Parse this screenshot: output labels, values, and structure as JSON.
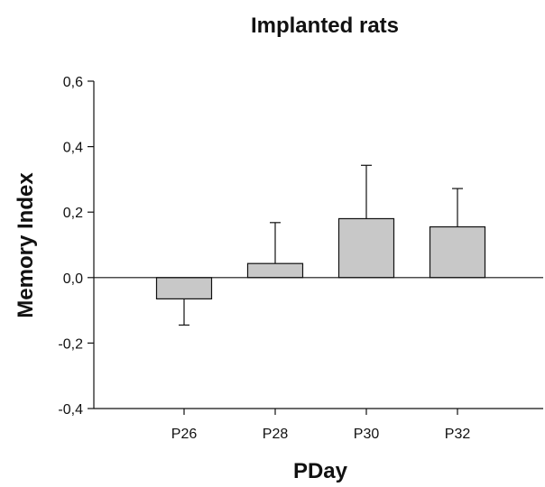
{
  "chart_data": {
    "type": "bar",
    "title": "Implanted rats",
    "xlabel": "PDay",
    "ylabel": "Memory Index",
    "categories": [
      "P26",
      "P28",
      "P30",
      "P32"
    ],
    "values": [
      -0.065,
      0.043,
      0.18,
      0.155
    ],
    "error_upper": [
      0.08,
      0.125,
      0.163,
      0.117
    ],
    "ylim": [
      -0.4,
      0.6
    ],
    "yticks": [
      -0.4,
      -0.2,
      0.0,
      0.2,
      0.4,
      0.6
    ],
    "ytick_labels": [
      "-0,4",
      "-0,2",
      "0,0",
      "0,2",
      "0,4",
      "0,6"
    ],
    "grid": false,
    "bar_color": "#c8c8c8",
    "zero_line": true
  }
}
